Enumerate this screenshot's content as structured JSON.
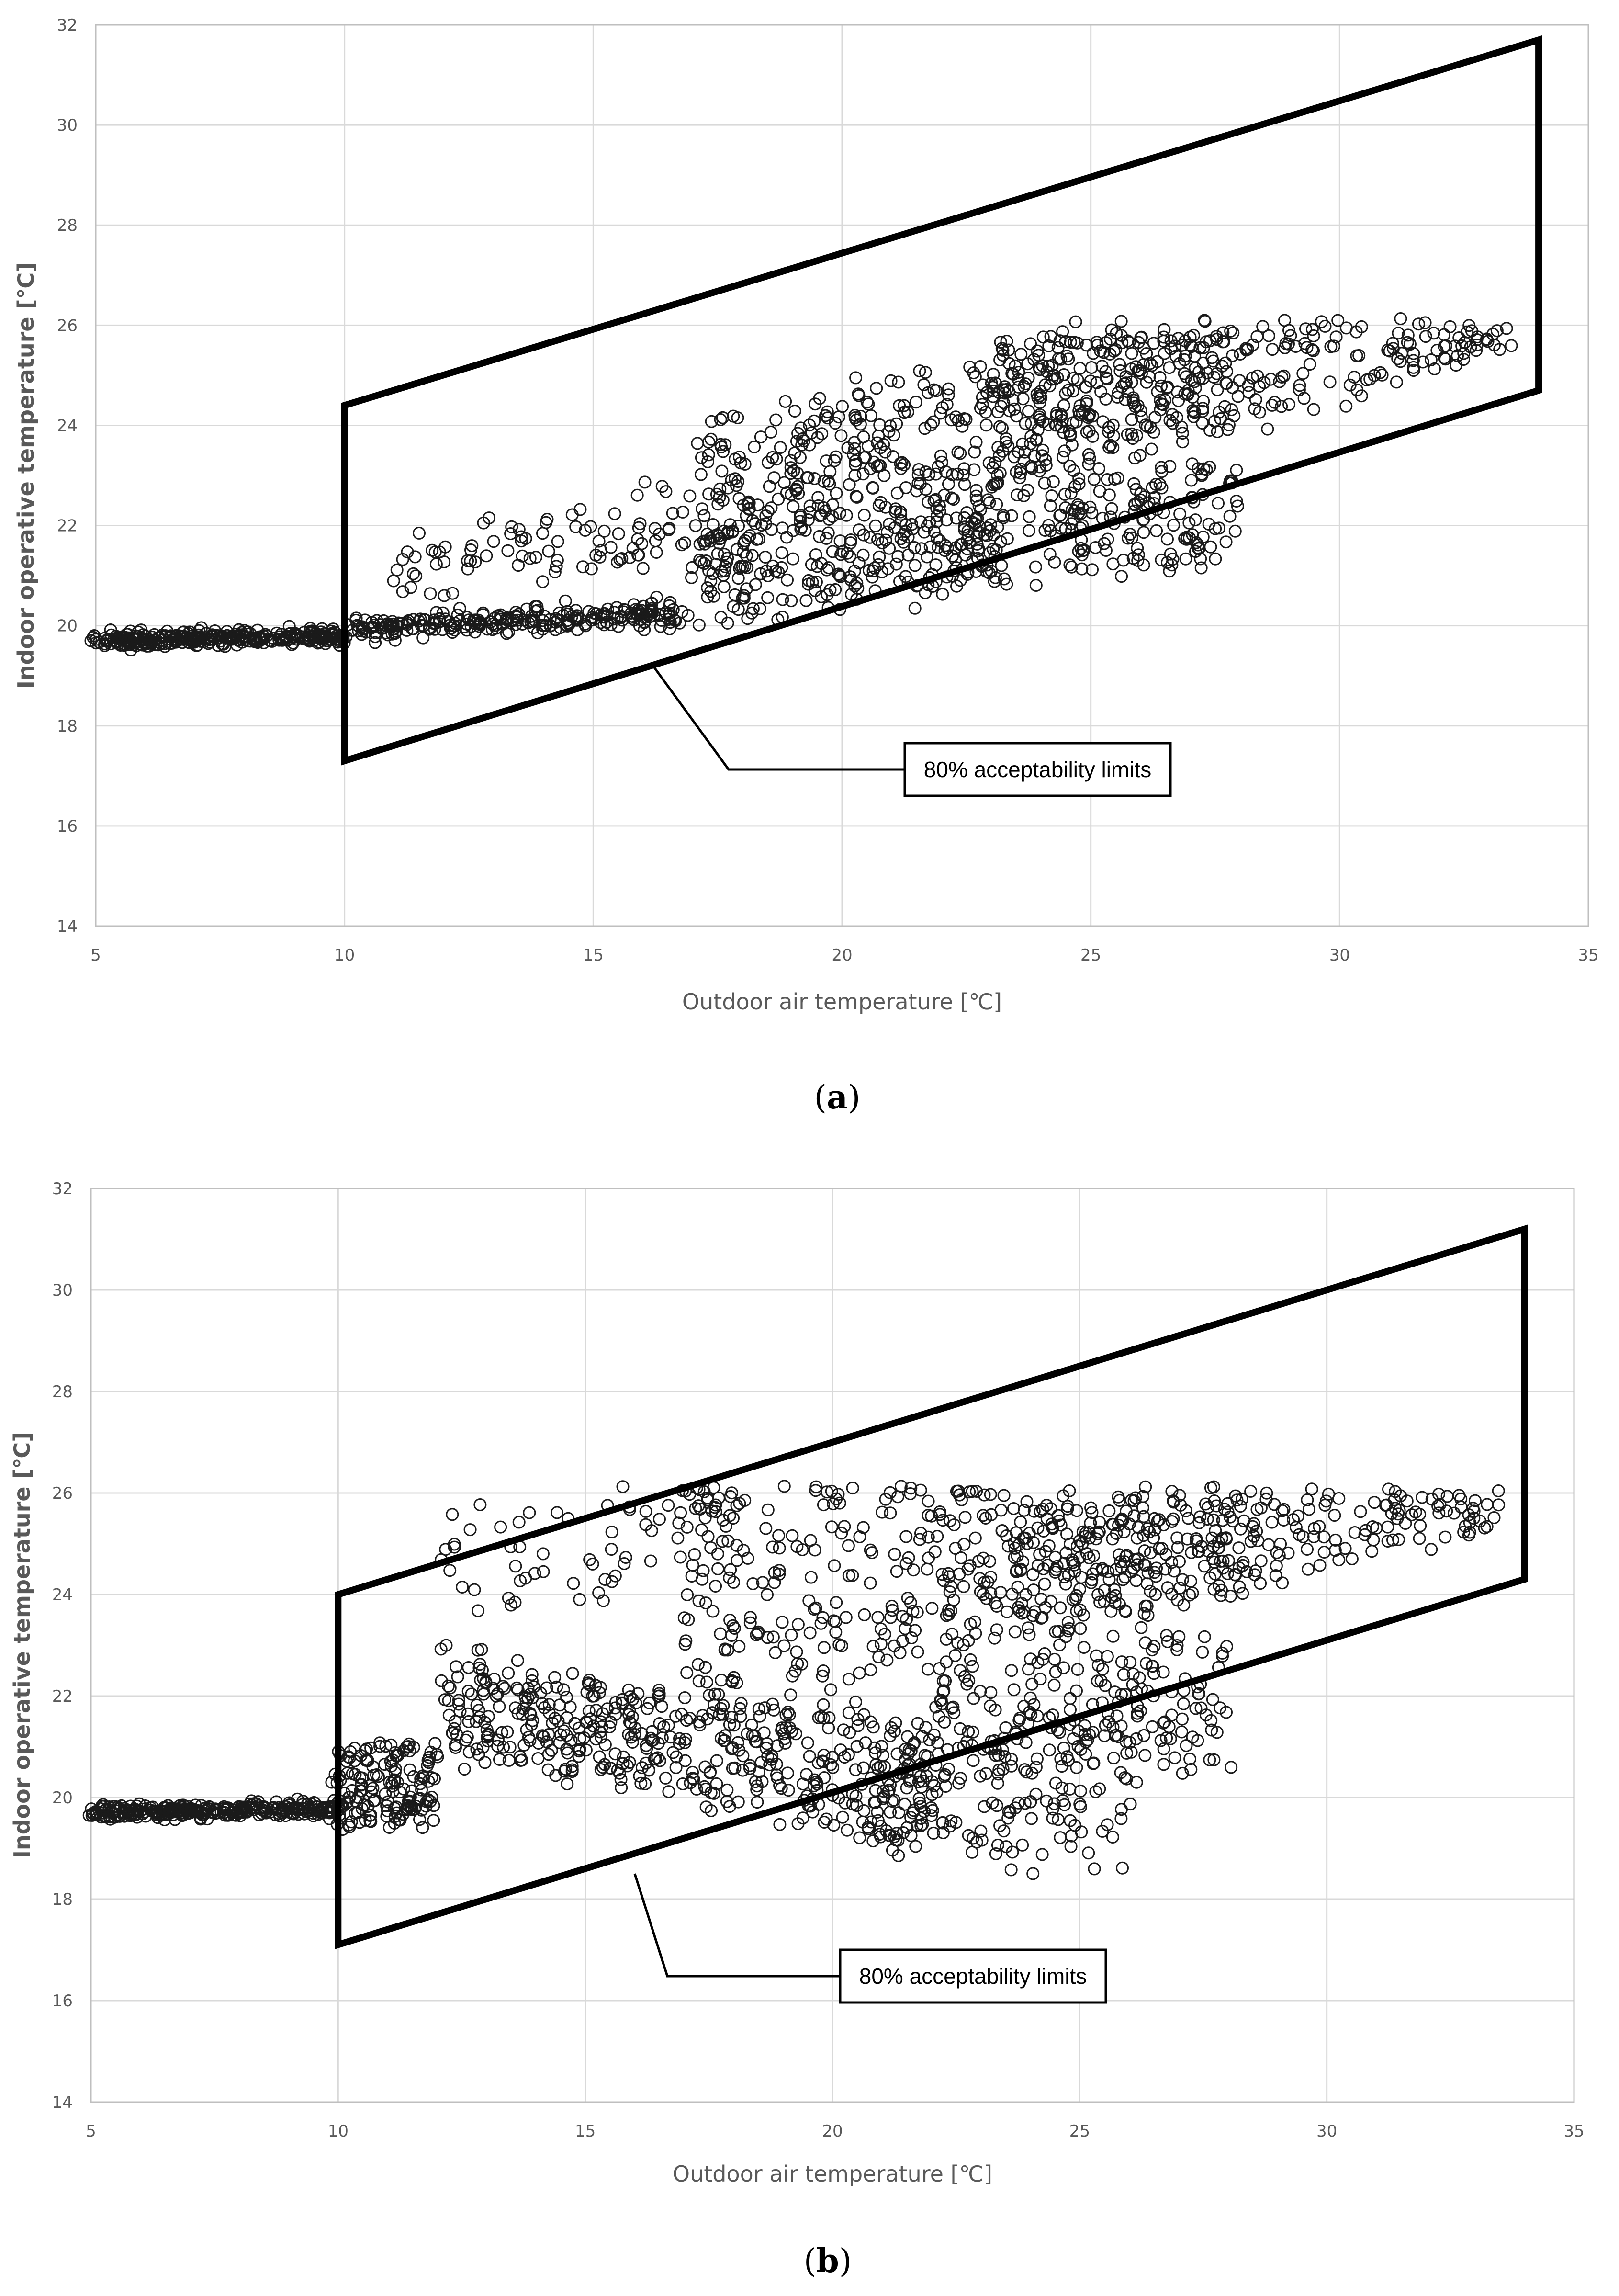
{
  "chart_data": [
    {
      "type": "scatter",
      "panel": "(a)",
      "xlabel": "Outdoor air temperature [℃]",
      "ylabel": "Indoor operative temperature [℃]",
      "xlim": [
        5,
        35
      ],
      "ylim": [
        14,
        32
      ],
      "xticks": [
        5,
        10,
        15,
        20,
        25,
        30,
        35
      ],
      "yticks": [
        14,
        16,
        18,
        20,
        22,
        24,
        26,
        28,
        30,
        32
      ],
      "grid": true,
      "marker": "open-circle",
      "callout": "80% acceptability limits",
      "callout_target": [
        16.2,
        19.2
      ],
      "acceptability_limits": {
        "lower": [
          [
            10,
            17.3
          ],
          [
            34,
            24.7
          ]
        ],
        "upper": [
          [
            10,
            24.4
          ],
          [
            34,
            31.7
          ]
        ]
      },
      "clusters": [
        {
          "x": [
            5,
            10
          ],
          "ylow": [
            19.7,
            19.8
          ],
          "yhigh": [
            19.7,
            19.8
          ],
          "spread": 0.2,
          "n": 300
        },
        {
          "x": [
            10,
            17
          ],
          "ylow": [
            19.9,
            20.1
          ],
          "yhigh": [
            20.0,
            20.4
          ],
          "spread": 0.3,
          "n": 260
        },
        {
          "x": [
            11,
            18
          ],
          "ylow": [
            20.6,
            21.2
          ],
          "yhigh": [
            21.5,
            23.0
          ],
          "spread": 0.6,
          "n": 110
        },
        {
          "x": [
            17,
            23
          ],
          "ylow": [
            20.0,
            21.0
          ],
          "yhigh": [
            22.0,
            22.5
          ],
          "spread": 0.5,
          "n": 240
        },
        {
          "x": [
            17,
            24
          ],
          "ylow": [
            21.8,
            23.0
          ],
          "yhigh": [
            24.3,
            25.2
          ],
          "spread": 0.5,
          "n": 260
        },
        {
          "x": [
            22,
            28
          ],
          "ylow": [
            20.7,
            21.4
          ],
          "yhigh": [
            23.0,
            23.3
          ],
          "spread": 0.5,
          "n": 220
        },
        {
          "x": [
            23,
            28.5
          ],
          "ylow": [
            23.0,
            24.0
          ],
          "yhigh": [
            25.8,
            26.0
          ],
          "spread": 0.4,
          "n": 330
        },
        {
          "x": [
            28.5,
            33.5
          ],
          "ylow": [
            24.0,
            25.5
          ],
          "yhigh": [
            26.1,
            26.0
          ],
          "spread": 0.3,
          "n": 110
        }
      ]
    },
    {
      "type": "scatter",
      "panel": "(b)",
      "xlabel": "Outdoor air temperature [℃]",
      "ylabel": "Indoor operative temperature [℃]",
      "xlim": [
        5,
        35
      ],
      "ylim": [
        14,
        32
      ],
      "xticks": [
        5,
        10,
        15,
        20,
        25,
        30,
        35
      ],
      "yticks": [
        14,
        16,
        18,
        20,
        22,
        24,
        26,
        28,
        30,
        32
      ],
      "grid": true,
      "marker": "open-circle",
      "callout": "80% acceptability limits",
      "callout_target": [
        16.0,
        18.5
      ],
      "acceptability_limits": {
        "lower": [
          [
            10,
            17.1
          ],
          [
            34,
            24.3
          ]
        ],
        "upper": [
          [
            10,
            24.0
          ],
          [
            34,
            31.2
          ]
        ]
      },
      "clusters": [
        {
          "x": [
            5,
            10
          ],
          "ylow": [
            19.7,
            19.8
          ],
          "yhigh": [
            19.7,
            19.8
          ],
          "spread": 0.2,
          "n": 300
        },
        {
          "x": [
            10,
            12
          ],
          "ylow": [
            19.4,
            19.5
          ],
          "yhigh": [
            21.0,
            21.0
          ],
          "spread": 0.2,
          "n": 150
        },
        {
          "x": [
            12,
            17
          ],
          "ylow": [
            20.8,
            20.2
          ],
          "yhigh": [
            23.0,
            22.0
          ],
          "spread": 0.4,
          "n": 250
        },
        {
          "x": [
            12,
            18
          ],
          "ylow": [
            23.5,
            24.5
          ],
          "yhigh": [
            25.3,
            27.0
          ],
          "spread": 0.6,
          "n": 70
        },
        {
          "x": [
            17,
            22
          ],
          "ylow": [
            20.0,
            19.2
          ],
          "yhigh": [
            22.0,
            21.5
          ],
          "spread": 0.5,
          "n": 230
        },
        {
          "x": [
            17,
            23
          ],
          "ylow": [
            22.0,
            23.0
          ],
          "yhigh": [
            26.0,
            26.5
          ],
          "spread": 0.6,
          "n": 230
        },
        {
          "x": [
            21,
            26
          ],
          "ylow": [
            19.0,
            18.6
          ],
          "yhigh": [
            21.0,
            21.5
          ],
          "spread": 0.5,
          "n": 150
        },
        {
          "x": [
            22,
            28
          ],
          "ylow": [
            20.8,
            20.5
          ],
          "yhigh": [
            23.0,
            23.3
          ],
          "spread": 0.5,
          "n": 200
        },
        {
          "x": [
            23,
            28.5
          ],
          "ylow": [
            23.0,
            24.0
          ],
          "yhigh": [
            25.8,
            26.0
          ],
          "spread": 0.4,
          "n": 320
        },
        {
          "x": [
            28.5,
            33.5
          ],
          "ylow": [
            24.0,
            25.5
          ],
          "yhigh": [
            26.1,
            26.0
          ],
          "spread": 0.3,
          "n": 110
        }
      ]
    }
  ]
}
